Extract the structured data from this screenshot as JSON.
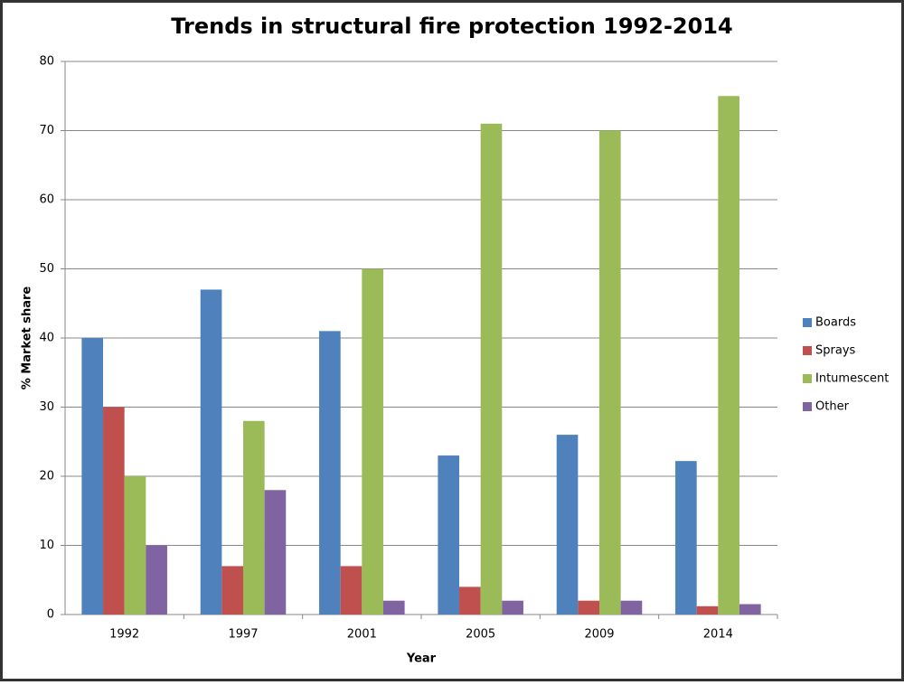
{
  "chart_data": {
    "type": "bar",
    "title": "Trends in structural fire protection 1992-2014",
    "x_label": "Year",
    "y_label": "% Market share",
    "categories": [
      "1992",
      "1997",
      "2001",
      "2005",
      "2009",
      "2014"
    ],
    "series": [
      {
        "name": "Boards",
        "color": "#4f81bd",
        "values": [
          40,
          47,
          41,
          23,
          26,
          22.2
        ]
      },
      {
        "name": "Sprays",
        "color": "#c0504d",
        "values": [
          30,
          7,
          7,
          4,
          2,
          1.2
        ]
      },
      {
        "name": "Intumescent",
        "color": "#9bbb59",
        "values": [
          20,
          28,
          50,
          71,
          70,
          75
        ]
      },
      {
        "name": "Other",
        "color": "#8064a2",
        "values": [
          10,
          18,
          2,
          2,
          2,
          1.5
        ]
      }
    ],
    "ylim": [
      0,
      80
    ],
    "yticks": [
      0,
      10,
      20,
      30,
      40,
      50,
      60,
      70,
      80
    ],
    "grid": true,
    "legend": "right"
  }
}
